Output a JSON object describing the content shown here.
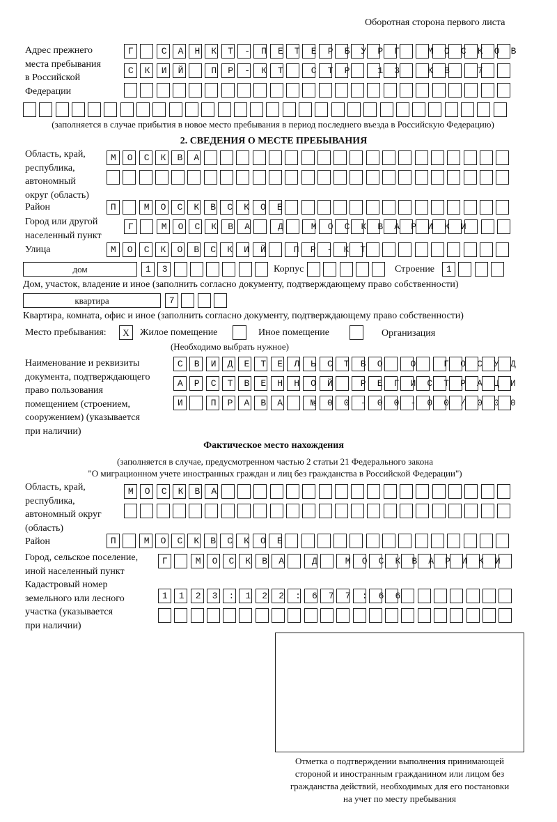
{
  "header": {
    "side_note": "Оборотная сторона первого листа"
  },
  "prev_address": {
    "label": [
      "Адрес прежнего",
      "места пребывания",
      "в Российской",
      "Федерации"
    ],
    "rows": [
      "Г САНКТ-ПЕТЕРБУРГ МОСКОВ",
      "СКИЙ ПР-КТ СТР 13 КВ 7",
      "",
      ""
    ],
    "note": "(заполняется в случае прибытия в новое место пребывания в период последнего въезда в Российскую Федерацию)"
  },
  "section2": {
    "title": "2. СВЕДЕНИЯ О МЕСТЕ ПРЕБЫВАНИЯ",
    "region_label": [
      "Область, край,",
      "республика,",
      "автономный",
      "округ (область)"
    ],
    "region_rows": [
      "МОСКВА",
      ""
    ],
    "district_label": "Район",
    "district": "П МОСКВСКОЕ",
    "city_label": [
      "Город или другой",
      "населенный пункт"
    ],
    "city": "Г МОСКВА Д МОСКВАРИКИ",
    "street_label": "Улица",
    "street": "МОСКОВСКИЙ ПР-КТ",
    "house_type": "дом",
    "house": "13",
    "korpus_label": "Корпус",
    "korpus": "",
    "stroenie_label": "Строение",
    "stroenie": "1",
    "house_note": "Дом, участок, владение и иное (заполнить согласно документу, подтверждающему право собственности)",
    "flat_type": "квартира",
    "flat": "7",
    "flat_note": "Квартира, комната, офис и иное (заполнить согласно документу, подтверждающему право собственности)",
    "place_label": "Место пребывания:",
    "place_options": [
      {
        "label": "Жилое помещение",
        "checked": "X"
      },
      {
        "label": "Иное помещение",
        "checked": ""
      },
      {
        "label": "Организация",
        "checked": ""
      }
    ],
    "place_note": "(Необходимо выбрать нужное)",
    "doc_label": [
      "Наименование и реквизиты",
      "документа, подтверждающего",
      "право пользования",
      "помещением (строением,",
      "сооружением) (указывается",
      "при наличии)"
    ],
    "doc_rows": [
      "СВИДЕТЕЛЬСТВО О ГОСУД",
      "АРСТВЕННОЙ РЕГИСТРАЦИ",
      "И ПРАВА №00-00-00/000"
    ]
  },
  "actual": {
    "title": "Фактическое место нахождения",
    "note": [
      "(заполняется в случае, предусмотренном частью 2 статьи 21 Федерального закона",
      "\"О миграционном учете иностранных граждан и лиц без гражданства в Российской Федерации\")"
    ],
    "region_label": [
      "Область, край,",
      "республика,",
      "автономный округ",
      "(область)"
    ],
    "region_rows": [
      "МОСКВА",
      ""
    ],
    "district_label": "Район",
    "district": "П МОСКВСКОЕ",
    "city_label": [
      "Город, сельское поселение,",
      "иной населенный пункт"
    ],
    "city": "Г МОСКВА Д МОСКВАРИКИ",
    "cadastre_label": [
      "Кадастровый номер",
      "земельного или лесного",
      "участка (указывается",
      "при наличии)"
    ],
    "cadastre_rows": [
      "1123:122:677:66",
      ""
    ],
    "stamp_caption": [
      "Отметка о подтверждении выполнения принимающей",
      "стороной и иностранным гражданином или лицом без",
      "гражданства действий, необходимых для его постановки",
      "на учет по месту пребывания"
    ]
  }
}
